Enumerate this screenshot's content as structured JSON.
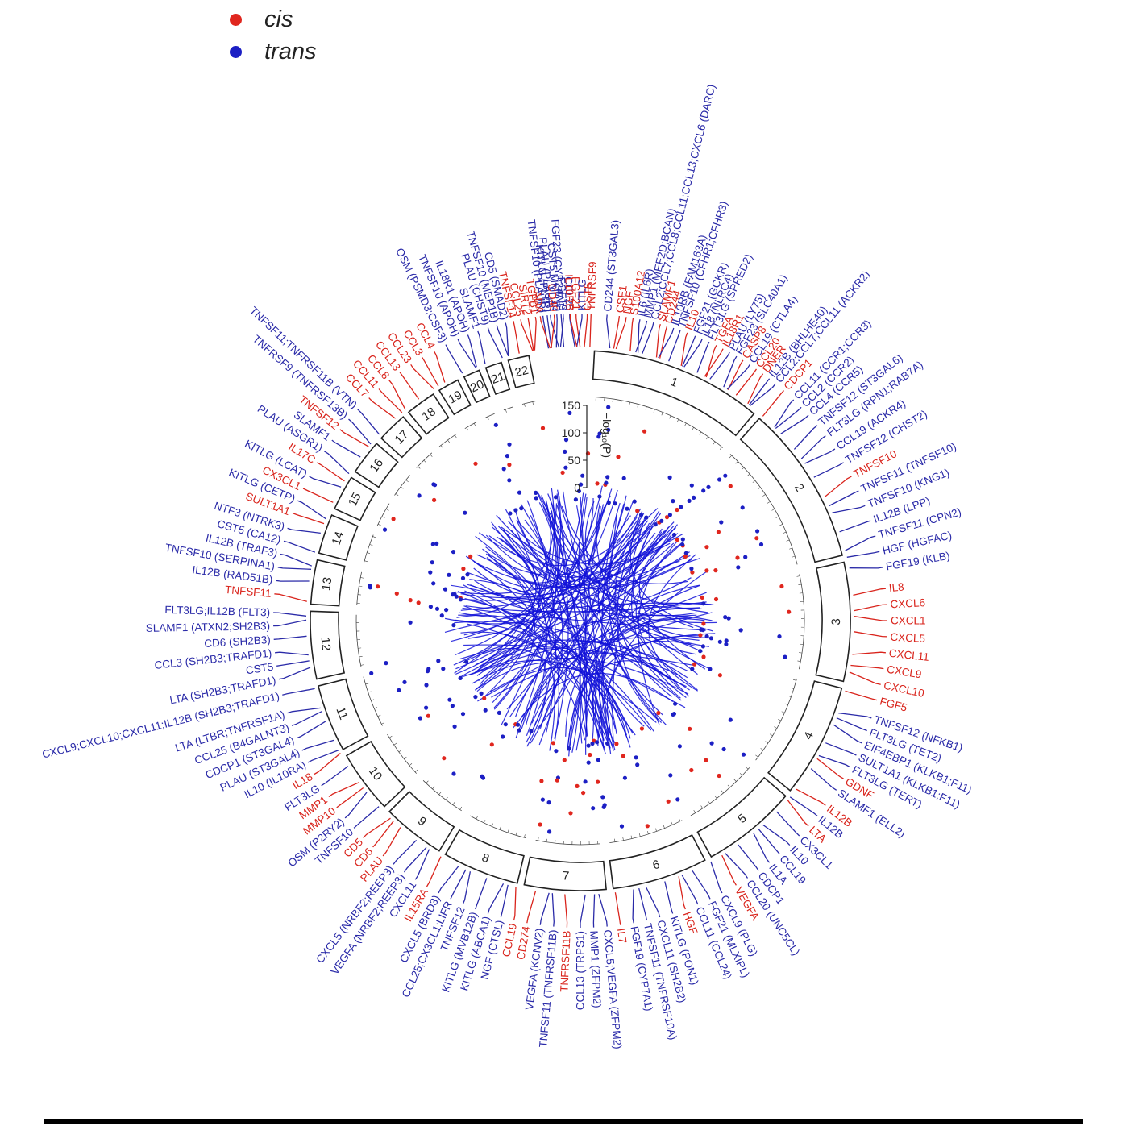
{
  "legend": {
    "cis": {
      "label": "cis",
      "color": "#e0261e"
    },
    "trans": {
      "label": "trans",
      "color": "#1c1fc4"
    }
  },
  "colors": {
    "cis": "#d9241c",
    "trans": "#2a2aa8",
    "link": "#1010d8",
    "ring": "#222222"
  },
  "yaxis": {
    "label": "−log₁₀(P)",
    "ticks": [
      0,
      50,
      100,
      150
    ]
  },
  "chromosomes": [
    {
      "n": "1"
    },
    {
      "n": "2"
    },
    {
      "n": "3"
    },
    {
      "n": "4"
    },
    {
      "n": "5"
    },
    {
      "n": "6"
    },
    {
      "n": "7"
    },
    {
      "n": "8"
    },
    {
      "n": "9"
    },
    {
      "n": "10"
    },
    {
      "n": "11"
    },
    {
      "n": "12"
    },
    {
      "n": "13"
    },
    {
      "n": "14"
    },
    {
      "n": "15"
    },
    {
      "n": "16"
    },
    {
      "n": "17"
    },
    {
      "n": "18"
    },
    {
      "n": "19"
    },
    {
      "n": "20"
    },
    {
      "n": "21"
    },
    {
      "n": "22"
    }
  ],
  "genes": [
    {
      "t": "TNFRSF9",
      "c": "cis",
      "a": 2
    },
    {
      "t": "CD244 (ST3GAL3)",
      "c": "trans",
      "a": 5
    },
    {
      "t": "CSF1",
      "c": "cis",
      "a": 7.3
    },
    {
      "t": "NGF",
      "c": "cis",
      "a": 8.6
    },
    {
      "t": "S100A12",
      "c": "cis",
      "a": 9.9
    },
    {
      "t": "IL6 (IL6R)",
      "c": "trans",
      "a": 11.2
    },
    {
      "t": "MMP1 (MEF2D;BCAN)",
      "c": "trans",
      "a": 12.5
    },
    {
      "t": "CCL2;CCL7;CCL8;CCL11;CCL13;CXCL6 (DARC)",
      "c": "trans",
      "a": 13.8
    },
    {
      "t": "SLAMF1",
      "c": "cis",
      "a": 15.1
    },
    {
      "t": "CD244",
      "c": "cis",
      "a": 16.4
    },
    {
      "t": "IL10RB (FAM163A)",
      "c": "trans",
      "a": 17.7
    },
    {
      "t": "TNFSF10 (CFHR1;CFHR3)",
      "c": "trans",
      "a": 19
    },
    {
      "t": "IL10",
      "c": "cis",
      "a": 20.4
    },
    {
      "t": "FGF21 (GCKR)",
      "c": "trans",
      "a": 22
    },
    {
      "t": "IL18 (NLRC4)",
      "c": "trans",
      "a": 23.4
    },
    {
      "t": "FLT3LG (SPRED2)",
      "c": "trans",
      "a": 24.8
    },
    {
      "t": "TGFA",
      "c": "cis",
      "a": 26.3
    },
    {
      "t": "IL18R1",
      "c": "cis",
      "a": 27.7
    },
    {
      "t": "PLAU (LY75)",
      "c": "trans",
      "a": 29.1
    },
    {
      "t": "FGF23 (SLC40A1)",
      "c": "trans",
      "a": 30.6
    },
    {
      "t": "CASP8",
      "c": "cis",
      "a": 32
    },
    {
      "t": "CCL19 (CTLA4)",
      "c": "trans",
      "a": 33.5
    },
    {
      "t": "CCL20",
      "c": "cis",
      "a": 35
    },
    {
      "t": "DNER",
      "c": "cis",
      "a": 36.5
    },
    {
      "t": "IL12B (BHLHE40)",
      "c": "trans",
      "a": 38
    },
    {
      "t": "CCL2;CCL7;CCL11 (ACKR2)",
      "c": "trans",
      "a": 39.5
    },
    {
      "t": "CDCP1",
      "c": "cis",
      "a": 41.5
    },
    {
      "t": "CCL11 (CCR1;CCR3)",
      "c": "trans",
      "a": 44
    },
    {
      "t": "CCL2 (CCR2)",
      "c": "trans",
      "a": 46
    },
    {
      "t": "CCL4 (CCR5)",
      "c": "trans",
      "a": 48
    },
    {
      "t": "TNFSF12 (ST3GAL6)",
      "c": "trans",
      "a": 50.5
    },
    {
      "t": "FLT3LG (RPN1;RAB7A)",
      "c": "trans",
      "a": 53
    },
    {
      "t": "CCL19 (ACKR4)",
      "c": "trans",
      "a": 56
    },
    {
      "t": "TNFSF12 (CHST2)",
      "c": "trans",
      "a": 59
    },
    {
      "t": "TNFSF10",
      "c": "cis",
      "a": 62
    },
    {
      "t": "TNFSF11 (TNFSF10)",
      "c": "trans",
      "a": 65
    },
    {
      "t": "TNFSF10 (KNG1)",
      "c": "trans",
      "a": 68
    },
    {
      "t": "IL12B (LPP)",
      "c": "trans",
      "a": 71
    },
    {
      "t": "TNFSF11 (CPN2)",
      "c": "trans",
      "a": 74
    },
    {
      "t": "HGF (HGFAC)",
      "c": "trans",
      "a": 77
    },
    {
      "t": "FGF19 (KLB)",
      "c": "trans",
      "a": 80
    },
    {
      "t": "IL8",
      "c": "cis",
      "a": 84
    },
    {
      "t": "CXCL6",
      "c": "cis",
      "a": 87
    },
    {
      "t": "CXCL1",
      "c": "cis",
      "a": 90
    },
    {
      "t": "CXCL5",
      "c": "cis",
      "a": 93
    },
    {
      "t": "CXCL11",
      "c": "cis",
      "a": 96
    },
    {
      "t": "CXCL9",
      "c": "cis",
      "a": 99
    },
    {
      "t": "CXCL10",
      "c": "cis",
      "a": 102
    },
    {
      "t": "FGF5",
      "c": "cis",
      "a": 105
    },
    {
      "t": "TNFSF12 (NFKB1)",
      "c": "trans",
      "a": 108.5
    },
    {
      "t": "FLT3LG (TET2)",
      "c": "trans",
      "a": 111
    },
    {
      "t": "EIF4EBP1 (KLKB1;F11)",
      "c": "trans",
      "a": 113.5
    },
    {
      "t": "SULT1A1 (KLKB1;F11)",
      "c": "trans",
      "a": 116
    },
    {
      "t": "FLT3LG (TERT)",
      "c": "trans",
      "a": 118.5
    },
    {
      "t": "GDNF",
      "c": "cis",
      "a": 121
    },
    {
      "t": "SLAMF1 (ELL2)",
      "c": "trans",
      "a": 123.5
    },
    {
      "t": "IL12B",
      "c": "cis",
      "a": 127
    },
    {
      "t": "IL12B",
      "c": "trans",
      "a": 129.5
    },
    {
      "t": "LTA",
      "c": "cis",
      "a": 132
    },
    {
      "t": "CX3CL1",
      "c": "trans",
      "a": 134.5
    },
    {
      "t": "IL10",
      "c": "trans",
      "a": 137
    },
    {
      "t": "CCL19",
      "c": "trans",
      "a": 139.5
    },
    {
      "t": "IL1A",
      "c": "trans",
      "a": 142
    },
    {
      "t": "CDCP1",
      "c": "trans",
      "a": 144.5
    },
    {
      "t": "CCL20 (UNC5CL)",
      "c": "trans",
      "a": 147
    },
    {
      "t": "VEGFA",
      "c": "cis",
      "a": 149.5
    },
    {
      "t": "CXCL9 (PLG)",
      "c": "trans",
      "a": 152.5
    },
    {
      "t": "FGF21 (MLXIPL)",
      "c": "trans",
      "a": 155
    },
    {
      "t": "CCL11 (CCL24)",
      "c": "trans",
      "a": 157.5
    },
    {
      "t": "HGF",
      "c": "cis",
      "a": 160
    },
    {
      "t": "KITLG (PON1)",
      "c": "trans",
      "a": 162.5
    },
    {
      "t": "CXCL11 (SH2B2)",
      "c": "trans",
      "a": 165
    },
    {
      "t": "TNFSF11 (TNFRSF10A)",
      "c": "trans",
      "a": 167.5
    },
    {
      "t": "FGF19 (CYP7A1)",
      "c": "trans",
      "a": 170
    },
    {
      "t": "IL7",
      "c": "cis",
      "a": 172.5
    },
    {
      "t": "CXCL5;VEGFA (ZFPM2)",
      "c": "trans",
      "a": 175
    },
    {
      "t": "MMP1 (ZFPM2)",
      "c": "trans",
      "a": 177.5
    },
    {
      "t": "CCL13 (TRPS1)",
      "c": "trans",
      "a": 180
    },
    {
      "t": "TNFRSF11B",
      "c": "cis",
      "a": 182.5
    },
    {
      "t": "TNFSF11 (TNFRSF11B)",
      "c": "trans",
      "a": 185
    },
    {
      "t": "VEGFA (KCNV2)",
      "c": "trans",
      "a": 187.5
    },
    {
      "t": "CD274",
      "c": "cis",
      "a": 190
    },
    {
      "t": "CCL19",
      "c": "cis",
      "a": 192.5
    },
    {
      "t": "NGF (CTSL)",
      "c": "trans",
      "a": 195
    },
    {
      "t": "KITLG (ABCA1)",
      "c": "trans",
      "a": 197.5
    },
    {
      "t": "KITLG (MVB12B)",
      "c": "trans",
      "a": 200
    },
    {
      "t": "TNFSF12",
      "c": "trans",
      "a": 202.5
    },
    {
      "t": "CCL25;CX3CL1;LIFR",
      "c": "trans",
      "a": 205
    },
    {
      "t": "CXCL5 (BRD3)",
      "c": "trans",
      "a": 207.5
    },
    {
      "t": "IL15RA",
      "c": "cis",
      "a": 210
    },
    {
      "t": "CXCL11",
      "c": "trans",
      "a": 212.5
    },
    {
      "t": "VEGFA (NRBF2;REEP3)",
      "c": "trans",
      "a": 215
    },
    {
      "t": "CXCL5 (NRBF2;REEP3)",
      "c": "trans",
      "a": 217.5
    },
    {
      "t": "PLAU",
      "c": "cis",
      "a": 220
    },
    {
      "t": "CD6",
      "c": "cis",
      "a": 222.5
    },
    {
      "t": "CD5",
      "c": "cis",
      "a": 225
    },
    {
      "t": "TNFSF10",
      "c": "trans",
      "a": 227.5
    },
    {
      "t": "OSM (P2RY2)",
      "c": "trans",
      "a": 230
    },
    {
      "t": "MMP10",
      "c": "cis",
      "a": 232.5
    },
    {
      "t": "MMP1",
      "c": "cis",
      "a": 235
    },
    {
      "t": "FLT3LG",
      "c": "trans",
      "a": 237.5
    },
    {
      "t": "IL18",
      "c": "cis",
      "a": 240
    },
    {
      "t": "IL10 (IL10RA)",
      "c": "trans",
      "a": 242.5
    },
    {
      "t": "PLAU (ST3GAL4)",
      "c": "trans",
      "a": 245
    },
    {
      "t": "CDCP1 (ST3GAL4)",
      "c": "trans",
      "a": 247.5
    },
    {
      "t": "CCL25 (B4GALNT3)",
      "c": "trans",
      "a": 250
    },
    {
      "t": "LTA (LTBR;TNFRSF1A)",
      "c": "trans",
      "a": 252.5
    },
    {
      "t": "CXCL9;CXCL10;CXCL11;IL12B (SH2B3;TRAFD1)",
      "c": "trans",
      "a": 256
    },
    {
      "t": "LTA (SH2B3;TRAFD1)",
      "c": "trans",
      "a": 259
    },
    {
      "t": "CST5",
      "c": "trans",
      "a": 261.5
    },
    {
      "t": "CCL3 (SH2B3;TRAFD1)",
      "c": "trans",
      "a": 264
    },
    {
      "t": "CD6 (SH2B3)",
      "c": "trans",
      "a": 266.5
    },
    {
      "t": "SLAMF1 (ATXN2;SH2B3)",
      "c": "trans",
      "a": 269
    },
    {
      "t": "FLT3LG;IL12B (FLT3)",
      "c": "trans",
      "a": 271.5
    },
    {
      "t": "TNFSF11",
      "c": "cis",
      "a": 275
    },
    {
      "t": "IL12B (RAD51B)",
      "c": "trans",
      "a": 277.5
    },
    {
      "t": "TNFSF10 (SERPINA1)",
      "c": "trans",
      "a": 280
    },
    {
      "t": "IL12B (TRAF3)",
      "c": "trans",
      "a": 282.5
    },
    {
      "t": "CST5 (CA12)",
      "c": "trans",
      "a": 285
    },
    {
      "t": "NTF3 (NTRK3)",
      "c": "trans",
      "a": 287.5
    },
    {
      "t": "SULT1A1",
      "c": "cis",
      "a": 290.5
    },
    {
      "t": "KITLG (CETP)",
      "c": "trans",
      "a": 293
    },
    {
      "t": "CX3CL1",
      "c": "cis",
      "a": 295.5
    },
    {
      "t": "KITLG (LCAT)",
      "c": "trans",
      "a": 298
    },
    {
      "t": "IL17C",
      "c": "cis",
      "a": 301
    },
    {
      "t": "PLAU (ASGR1)",
      "c": "trans",
      "a": 303.5
    },
    {
      "t": "SLAMF1",
      "c": "trans",
      "a": 306
    },
    {
      "t": "TNFSF12",
      "c": "cis",
      "a": 308.5
    },
    {
      "t": "TNFRSF9 (TNFRSF13B)",
      "c": "trans",
      "a": 311
    },
    {
      "t": "TNFSF11;TNFRSF11B (VTN)",
      "c": "trans",
      "a": 313.5
    },
    {
      "t": "CCL7",
      "c": "cis",
      "a": 316.5
    },
    {
      "t": "CCL11",
      "c": "cis",
      "a": 319
    },
    {
      "t": "CCL8",
      "c": "cis",
      "a": 321.5
    },
    {
      "t": "CCL13",
      "c": "cis",
      "a": 324
    },
    {
      "t": "CCL23",
      "c": "cis",
      "a": 326.5
    },
    {
      "t": "CCL3",
      "c": "cis",
      "a": 329
    },
    {
      "t": "CCL4",
      "c": "cis",
      "a": 331.5
    },
    {
      "t": "OSM (PSMD3;CSF3)",
      "c": "trans",
      "a": 334
    },
    {
      "t": "TNFSF10 (APOH)",
      "c": "trans",
      "a": 336.5
    },
    {
      "t": "IL18R1 (APOH)",
      "c": "trans",
      "a": 338.5
    },
    {
      "t": "SLAMF1",
      "c": "trans",
      "a": 340.5
    },
    {
      "t": "PLAU (CHST9)",
      "c": "trans",
      "a": 342.5
    },
    {
      "t": "TNFSF10 (MEP1B)",
      "c": "trans",
      "a": 344.2
    },
    {
      "t": "CD5 (SMAD2)",
      "c": "trans",
      "a": 345.9
    },
    {
      "t": "TNFSF14",
      "c": "cis",
      "a": 347.4
    },
    {
      "t": "CCL25",
      "c": "cis",
      "a": 348.8
    },
    {
      "t": "SIRT2",
      "c": "cis",
      "a": 350.2
    },
    {
      "t": "TGFB1",
      "c": "cis",
      "a": 351.6
    },
    {
      "t": "TNFSF10 (PLAUR)",
      "c": "trans",
      "a": 353
    },
    {
      "t": "PLAU (PLAUR)",
      "c": "trans",
      "a": 354.4
    },
    {
      "t": "CST5;MMP10",
      "c": "trans",
      "a": 355.6
    },
    {
      "t": "FGF19",
      "c": "trans",
      "a": 356.8
    },
    {
      "t": "CCL25",
      "c": "trans",
      "a": 358
    },
    {
      "t": "FGF21",
      "c": "cis",
      "a": 359.2
    },
    {
      "t": "KITLG",
      "c": "trans",
      "a": 0.3
    },
    {
      "t": "CST5",
      "c": "cis",
      "a": 1.3
    },
    {
      "t": "ADA",
      "c": "cis",
      "a": -7.5
    },
    {
      "t": "KITLG (PLTP)",
      "c": "trans",
      "a": -6.2
    },
    {
      "t": "CD40",
      "c": "cis",
      "a": -4.9
    },
    {
      "t": "FGF23 (CYP24A1)",
      "c": "trans",
      "a": -3.6
    },
    {
      "t": "IL10RB",
      "c": "cis",
      "a": -1.9
    }
  ]
}
